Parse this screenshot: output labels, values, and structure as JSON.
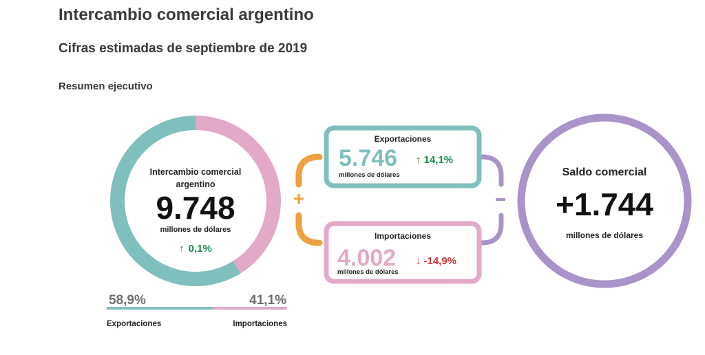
{
  "header": {
    "title": "Intercambio comercial argentino",
    "subtitle": "Cifras estimadas de septiembre de 2019",
    "section": "Resumen ejecutivo"
  },
  "colors": {
    "exports": "#7fbfbd",
    "imports": "#e3a9c8",
    "saldo": "#a993c9",
    "plus": "#f0a040",
    "up": "#1a8a4a",
    "down": "#d03030"
  },
  "intercambio": {
    "label_line1": "Intercambio comercial",
    "label_line2": "argentino",
    "value": "9.748",
    "unit": "millones de dólares",
    "arrow": "↑",
    "change": "0,1%"
  },
  "boxes": {
    "exportaciones": {
      "title": "Exportaciones",
      "value": "5.746",
      "unit": "millones de dólares",
      "arrow": "↑",
      "change": "14,1%"
    },
    "importaciones": {
      "title": "Importaciones",
      "value": "4.002",
      "unit": "millones de dólares",
      "arrow": "↓",
      "change": "-14,9%"
    }
  },
  "operators": {
    "plus": "+",
    "minus": "-"
  },
  "saldo": {
    "title": "Saldo comercial",
    "value": "+1.744",
    "unit": "millones de dólares"
  },
  "chart_data": {
    "type": "pie",
    "categories": [
      "Exportaciones",
      "Importaciones"
    ],
    "values": [
      58.9,
      41.1
    ],
    "value_labels": [
      "58,9%",
      "41,1%"
    ],
    "legend": [
      "Exportaciones",
      "Importaciones"
    ],
    "legend_position": "bottom"
  }
}
